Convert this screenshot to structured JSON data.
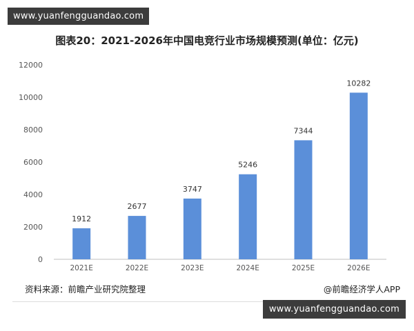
{
  "watermark_top": "www.yuanfengguandao.com",
  "watermark_bottom": "www.yuanfengguandao.com",
  "title": "图表20：2021-2026年中国电竞行业市场规模预测(单位：亿元)",
  "source": "资料来源：前瞻产业研究院整理",
  "credit": "@前瞻经济学人APP",
  "colors": {
    "bar": "#5b8fd9",
    "axis": "#bfbfbf"
  },
  "chart_data": {
    "type": "bar",
    "title": "图表20：2021-2026年中国电竞行业市场规模预测(单位：亿元)",
    "categories": [
      "2021E",
      "2022E",
      "2023E",
      "2024E",
      "2025E",
      "2026E"
    ],
    "values": [
      1912,
      2677,
      3747,
      5246,
      7344,
      10282
    ],
    "data_labels": [
      "1912",
      "2677",
      "3747",
      "5246",
      "7344",
      "10282"
    ],
    "yticks": [
      "0",
      "2000",
      "4000",
      "6000",
      "8000",
      "10000",
      "12000"
    ],
    "ylim": [
      0,
      12000
    ],
    "xlabel": "",
    "ylabel": "",
    "grid": false
  }
}
